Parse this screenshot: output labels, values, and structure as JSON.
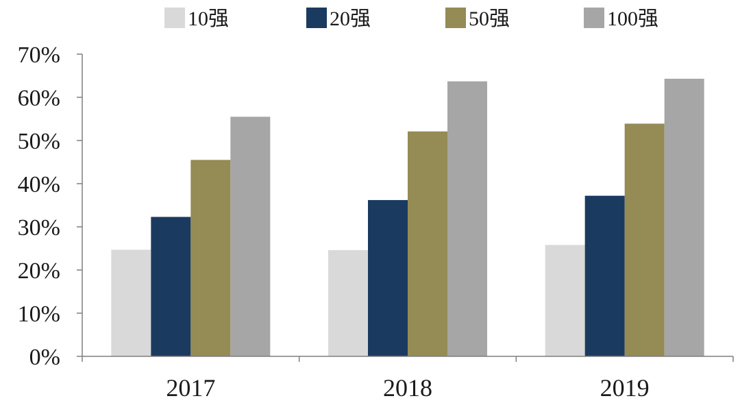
{
  "chart_data": {
    "type": "bar",
    "title": "",
    "xlabel": "",
    "ylabel": "",
    "categories": [
      "2017",
      "2018",
      "2019"
    ],
    "series": [
      {
        "name": "10强",
        "color": "#d9d9d9",
        "values": [
          24.7,
          24.6,
          25.8
        ]
      },
      {
        "name": "20强",
        "color": "#1b3a60",
        "values": [
          32.3,
          36.2,
          37.2
        ]
      },
      {
        "name": "50强",
        "color": "#948b55",
        "values": [
          45.5,
          52.1,
          53.9
        ]
      },
      {
        "name": "100强",
        "color": "#a6a6a6",
        "values": [
          55.5,
          63.7,
          64.3
        ]
      }
    ],
    "ylim": [
      0,
      70
    ],
    "yticks": [
      0,
      10,
      20,
      30,
      40,
      50,
      60,
      70
    ],
    "ytick_labels": [
      "0%",
      "10%",
      "20%",
      "30%",
      "40%",
      "50%",
      "60%",
      "70%"
    ],
    "grid": false,
    "legend_position": "top"
  }
}
